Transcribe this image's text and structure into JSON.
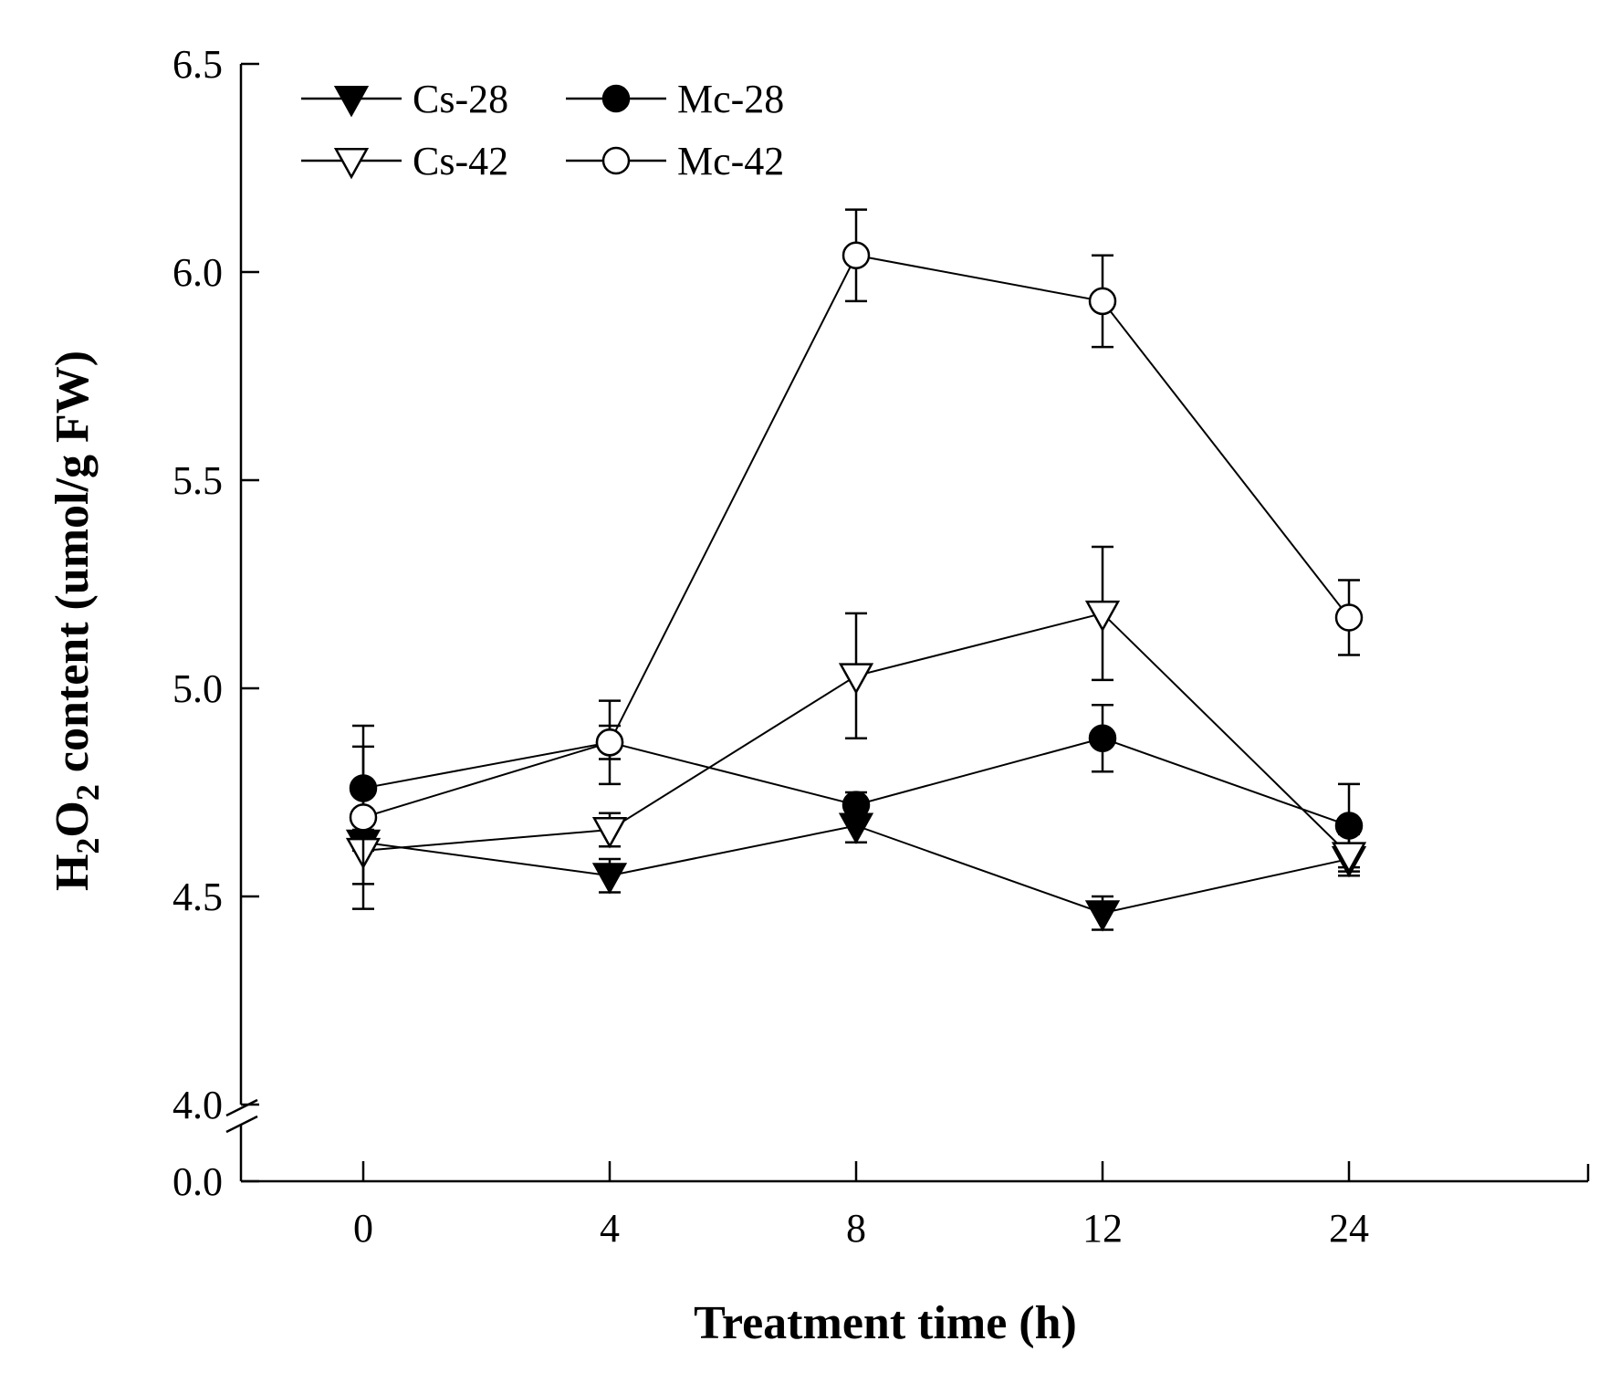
{
  "chart_data": {
    "type": "line",
    "title": "",
    "xlabel": "Treatment time (h)",
    "ylabel_prefix": "H",
    "ylabel_sub1": "2",
    "ylabel_mid": "O",
    "ylabel_sub2": "2",
    "ylabel_suffix": " content (umol/g FW)",
    "categories": [
      "0",
      "4",
      "8",
      "12",
      "24"
    ],
    "y_ticks": [
      "0.0",
      "4.0",
      "4.5",
      "5.0",
      "5.5",
      "6.0",
      "6.5"
    ],
    "y_break": [
      0.0,
      4.0
    ],
    "ylim": [
      4.0,
      6.5
    ],
    "series": [
      {
        "name": "Cs-28",
        "marker": "triangle-down",
        "fill": "filled",
        "values": [
          4.63,
          4.55,
          4.67,
          4.46,
          4.59
        ],
        "errors": [
          0.02,
          0.04,
          0.04,
          0.04,
          0.03
        ]
      },
      {
        "name": "Mc-28",
        "marker": "circle",
        "fill": "filled",
        "values": [
          4.76,
          4.87,
          4.72,
          4.88,
          4.67
        ],
        "errors": [
          0.1,
          0.04,
          0.03,
          0.08,
          0.1
        ]
      },
      {
        "name": "Cs-42",
        "marker": "triangle-down",
        "fill": "open",
        "values": [
          4.61,
          4.66,
          5.03,
          5.18,
          4.6
        ],
        "errors": [
          0.08,
          0.04,
          0.15,
          0.16,
          0.05
        ]
      },
      {
        "name": "Mc-42",
        "marker": "circle",
        "fill": "open",
        "values": [
          4.69,
          4.87,
          6.04,
          5.93,
          5.17
        ],
        "errors": [
          0.22,
          0.1,
          0.11,
          0.11,
          0.09
        ]
      }
    ],
    "legend_position": "top-left"
  }
}
